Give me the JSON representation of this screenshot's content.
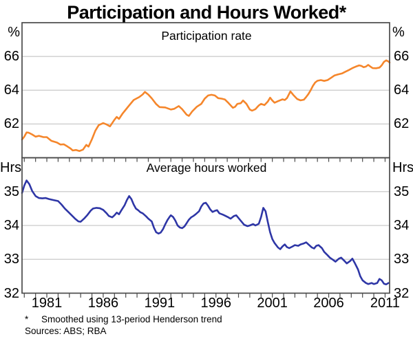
{
  "title": "Participation and Hours Worked*",
  "footnotes": {
    "marker": "*",
    "note": "Smoothed using 13-period Henderson trend",
    "sources": "Sources: ABS; RBA"
  },
  "colors": {
    "participation_line": "#f5862b",
    "hours_line": "#2e36a6",
    "gridline": "#c9c9c9",
    "frame": "#4a4a4a",
    "text": "#000000"
  },
  "x_axis": {
    "min": 1978.8,
    "max": 2011.4,
    "tick_first_year": 1979,
    "tick_last_year": 2011,
    "label_years": [
      1981,
      1986,
      1991,
      1996,
      2001,
      2006,
      2011
    ]
  },
  "panels": [
    {
      "label": "Participation rate",
      "unit": "%",
      "ymin": 60,
      "ymax": 68,
      "gridlines": [
        62,
        64,
        66
      ],
      "tick_labels": [
        66,
        64,
        62
      ],
      "series": "participation"
    },
    {
      "label": "Average hours worked",
      "unit": "Hrs",
      "ymin": 32,
      "ymax": 36,
      "gridlines": [
        33,
        34,
        35
      ],
      "tick_labels": [
        35,
        34,
        33,
        32
      ],
      "series": "hours"
    }
  ],
  "chart_data": {
    "type": "line",
    "title": "Participation and Hours Worked*",
    "x_unit": "year",
    "x_range": [
      1978.8,
      2011.4
    ],
    "grid": "horizontal-only",
    "legend": "none",
    "series": [
      {
        "name": "Participation rate",
        "panel": 0,
        "unit": "%",
        "ylim": [
          60,
          68
        ],
        "color": "#f5862b",
        "points": [
          [
            1978.8,
            61.08
          ],
          [
            1979.0,
            61.25
          ],
          [
            1979.2,
            61.5
          ],
          [
            1979.4,
            61.48
          ],
          [
            1979.7,
            61.38
          ],
          [
            1980.0,
            61.25
          ],
          [
            1980.3,
            61.3
          ],
          [
            1980.7,
            61.22
          ],
          [
            1981.0,
            61.22
          ],
          [
            1981.4,
            61.0
          ],
          [
            1981.9,
            60.9
          ],
          [
            1982.2,
            60.78
          ],
          [
            1982.5,
            60.8
          ],
          [
            1982.8,
            60.68
          ],
          [
            1983.1,
            60.55
          ],
          [
            1983.3,
            60.43
          ],
          [
            1983.6,
            60.46
          ],
          [
            1983.9,
            60.4
          ],
          [
            1984.2,
            60.48
          ],
          [
            1984.5,
            60.76
          ],
          [
            1984.7,
            60.66
          ],
          [
            1985.0,
            61.1
          ],
          [
            1985.3,
            61.6
          ],
          [
            1985.6,
            61.93
          ],
          [
            1986.0,
            62.05
          ],
          [
            1986.3,
            61.97
          ],
          [
            1986.6,
            61.86
          ],
          [
            1987.0,
            62.25
          ],
          [
            1987.2,
            62.42
          ],
          [
            1987.4,
            62.3
          ],
          [
            1987.7,
            62.6
          ],
          [
            1988.0,
            62.85
          ],
          [
            1988.3,
            63.1
          ],
          [
            1988.7,
            63.42
          ],
          [
            1989.2,
            63.6
          ],
          [
            1989.5,
            63.75
          ],
          [
            1989.7,
            63.9
          ],
          [
            1990.0,
            63.74
          ],
          [
            1990.3,
            63.52
          ],
          [
            1990.7,
            63.18
          ],
          [
            1991.0,
            63.0
          ],
          [
            1991.5,
            62.98
          ],
          [
            1992.0,
            62.86
          ],
          [
            1992.3,
            62.9
          ],
          [
            1992.7,
            63.06
          ],
          [
            1993.0,
            62.88
          ],
          [
            1993.4,
            62.55
          ],
          [
            1993.6,
            62.48
          ],
          [
            1993.9,
            62.75
          ],
          [
            1994.3,
            63.02
          ],
          [
            1994.7,
            63.19
          ],
          [
            1995.0,
            63.5
          ],
          [
            1995.3,
            63.69
          ],
          [
            1995.6,
            63.73
          ],
          [
            1995.9,
            63.69
          ],
          [
            1996.2,
            63.53
          ],
          [
            1996.5,
            63.5
          ],
          [
            1996.8,
            63.45
          ],
          [
            1997.1,
            63.25
          ],
          [
            1997.5,
            62.96
          ],
          [
            1997.7,
            63.02
          ],
          [
            1997.9,
            63.19
          ],
          [
            1998.2,
            63.23
          ],
          [
            1998.4,
            63.39
          ],
          [
            1998.7,
            63.19
          ],
          [
            1999.0,
            62.86
          ],
          [
            1999.2,
            62.79
          ],
          [
            1999.5,
            62.88
          ],
          [
            1999.8,
            63.1
          ],
          [
            2000.0,
            63.19
          ],
          [
            2000.3,
            63.12
          ],
          [
            2000.6,
            63.33
          ],
          [
            2000.8,
            63.56
          ],
          [
            2001.0,
            63.39
          ],
          [
            2001.2,
            63.26
          ],
          [
            2001.5,
            63.35
          ],
          [
            2001.9,
            63.46
          ],
          [
            2002.1,
            63.42
          ],
          [
            2002.3,
            63.53
          ],
          [
            2002.6,
            63.93
          ],
          [
            2002.9,
            63.69
          ],
          [
            2003.2,
            63.48
          ],
          [
            2003.5,
            63.4
          ],
          [
            2003.8,
            63.44
          ],
          [
            2004.0,
            63.6
          ],
          [
            2004.2,
            63.78
          ],
          [
            2004.4,
            64.0
          ],
          [
            2004.6,
            64.26
          ],
          [
            2004.8,
            64.46
          ],
          [
            2005.0,
            64.56
          ],
          [
            2005.3,
            64.6
          ],
          [
            2005.6,
            64.55
          ],
          [
            2005.9,
            64.6
          ],
          [
            2006.2,
            64.73
          ],
          [
            2006.5,
            64.87
          ],
          [
            2006.8,
            64.93
          ],
          [
            2007.2,
            65.0
          ],
          [
            2007.5,
            65.1
          ],
          [
            2007.8,
            65.2
          ],
          [
            2008.1,
            65.31
          ],
          [
            2008.4,
            65.4
          ],
          [
            2008.7,
            65.47
          ],
          [
            2008.9,
            65.44
          ],
          [
            2009.1,
            65.36
          ],
          [
            2009.3,
            65.4
          ],
          [
            2009.5,
            65.5
          ],
          [
            2009.7,
            65.4
          ],
          [
            2009.9,
            65.31
          ],
          [
            2010.2,
            65.3
          ],
          [
            2010.5,
            65.34
          ],
          [
            2010.7,
            65.47
          ],
          [
            2010.9,
            65.68
          ],
          [
            2011.1,
            65.77
          ],
          [
            2011.3,
            65.7
          ],
          [
            2011.4,
            65.64
          ]
        ]
      },
      {
        "name": "Average hours worked",
        "panel": 1,
        "unit": "Hrs",
        "ylim": [
          32,
          36
        ],
        "color": "#2e36a6",
        "points": [
          [
            1978.8,
            34.96
          ],
          [
            1979.0,
            35.18
          ],
          [
            1979.2,
            35.33
          ],
          [
            1979.45,
            35.22
          ],
          [
            1979.7,
            35.02
          ],
          [
            1980.0,
            34.87
          ],
          [
            1980.3,
            34.81
          ],
          [
            1980.6,
            34.8
          ],
          [
            1980.9,
            34.81
          ],
          [
            1981.2,
            34.78
          ],
          [
            1981.6,
            34.75
          ],
          [
            1982.0,
            34.72
          ],
          [
            1982.3,
            34.62
          ],
          [
            1982.6,
            34.5
          ],
          [
            1982.9,
            34.4
          ],
          [
            1983.2,
            34.3
          ],
          [
            1983.5,
            34.2
          ],
          [
            1983.8,
            34.12
          ],
          [
            1984.0,
            34.11
          ],
          [
            1984.3,
            34.2
          ],
          [
            1984.6,
            34.31
          ],
          [
            1984.9,
            34.44
          ],
          [
            1985.1,
            34.5
          ],
          [
            1985.4,
            34.52
          ],
          [
            1985.7,
            34.51
          ],
          [
            1986.0,
            34.46
          ],
          [
            1986.3,
            34.36
          ],
          [
            1986.5,
            34.28
          ],
          [
            1986.8,
            34.24
          ],
          [
            1987.0,
            34.3
          ],
          [
            1987.2,
            34.38
          ],
          [
            1987.4,
            34.33
          ],
          [
            1987.6,
            34.44
          ],
          [
            1987.9,
            34.6
          ],
          [
            1988.1,
            34.75
          ],
          [
            1988.3,
            34.87
          ],
          [
            1988.5,
            34.78
          ],
          [
            1988.7,
            34.62
          ],
          [
            1988.9,
            34.5
          ],
          [
            1989.1,
            34.45
          ],
          [
            1989.3,
            34.39
          ],
          [
            1989.5,
            34.36
          ],
          [
            1989.8,
            34.27
          ],
          [
            1990.0,
            34.2
          ],
          [
            1990.3,
            34.12
          ],
          [
            1990.5,
            33.93
          ],
          [
            1990.7,
            33.8
          ],
          [
            1990.9,
            33.76
          ],
          [
            1991.1,
            33.79
          ],
          [
            1991.3,
            33.89
          ],
          [
            1991.5,
            34.03
          ],
          [
            1991.7,
            34.16
          ],
          [
            1991.9,
            34.26
          ],
          [
            1992.0,
            34.3
          ],
          [
            1992.2,
            34.25
          ],
          [
            1992.4,
            34.14
          ],
          [
            1992.6,
            34.0
          ],
          [
            1992.8,
            33.94
          ],
          [
            1993.0,
            33.92
          ],
          [
            1993.2,
            33.97
          ],
          [
            1993.4,
            34.07
          ],
          [
            1993.6,
            34.17
          ],
          [
            1993.8,
            34.24
          ],
          [
            1994.0,
            34.28
          ],
          [
            1994.2,
            34.33
          ],
          [
            1994.5,
            34.42
          ],
          [
            1994.7,
            34.56
          ],
          [
            1994.9,
            34.65
          ],
          [
            1995.1,
            34.67
          ],
          [
            1995.3,
            34.58
          ],
          [
            1995.5,
            34.47
          ],
          [
            1995.7,
            34.4
          ],
          [
            1995.9,
            34.43
          ],
          [
            1996.1,
            34.45
          ],
          [
            1996.3,
            34.36
          ],
          [
            1996.6,
            34.32
          ],
          [
            1996.8,
            34.29
          ],
          [
            1997.1,
            34.24
          ],
          [
            1997.3,
            34.2
          ],
          [
            1997.6,
            34.28
          ],
          [
            1997.8,
            34.3
          ],
          [
            1998.0,
            34.22
          ],
          [
            1998.3,
            34.1
          ],
          [
            1998.5,
            34.02
          ],
          [
            1998.8,
            33.98
          ],
          [
            1999.0,
            34.0
          ],
          [
            1999.3,
            34.04
          ],
          [
            1999.5,
            34.0
          ],
          [
            1999.8,
            34.05
          ],
          [
            2000.0,
            34.25
          ],
          [
            2000.2,
            34.52
          ],
          [
            2000.4,
            34.42
          ],
          [
            2000.6,
            34.1
          ],
          [
            2000.8,
            33.8
          ],
          [
            2001.0,
            33.6
          ],
          [
            2001.2,
            33.48
          ],
          [
            2001.5,
            33.35
          ],
          [
            2001.7,
            33.3
          ],
          [
            2001.9,
            33.38
          ],
          [
            2002.1,
            33.44
          ],
          [
            2002.3,
            33.36
          ],
          [
            2002.5,
            33.33
          ],
          [
            2002.8,
            33.38
          ],
          [
            2003.0,
            33.42
          ],
          [
            2003.3,
            33.4
          ],
          [
            2003.5,
            33.44
          ],
          [
            2003.8,
            33.47
          ],
          [
            2004.0,
            33.5
          ],
          [
            2004.2,
            33.44
          ],
          [
            2004.5,
            33.35
          ],
          [
            2004.7,
            33.32
          ],
          [
            2004.9,
            33.4
          ],
          [
            2005.1,
            33.42
          ],
          [
            2005.4,
            33.33
          ],
          [
            2005.6,
            33.22
          ],
          [
            2005.9,
            33.12
          ],
          [
            2006.1,
            33.05
          ],
          [
            2006.4,
            32.98
          ],
          [
            2006.6,
            32.93
          ],
          [
            2006.9,
            33.02
          ],
          [
            2007.1,
            33.05
          ],
          [
            2007.4,
            32.95
          ],
          [
            2007.6,
            32.88
          ],
          [
            2007.9,
            32.95
          ],
          [
            2008.1,
            33.02
          ],
          [
            2008.3,
            32.9
          ],
          [
            2008.6,
            32.7
          ],
          [
            2008.8,
            32.5
          ],
          [
            2009.0,
            32.38
          ],
          [
            2009.3,
            32.3
          ],
          [
            2009.5,
            32.27
          ],
          [
            2009.8,
            32.3
          ],
          [
            2010.0,
            32.27
          ],
          [
            2010.3,
            32.3
          ],
          [
            2010.5,
            32.42
          ],
          [
            2010.7,
            32.38
          ],
          [
            2010.9,
            32.28
          ],
          [
            2011.1,
            32.26
          ],
          [
            2011.3,
            32.3
          ]
        ]
      }
    ]
  }
}
